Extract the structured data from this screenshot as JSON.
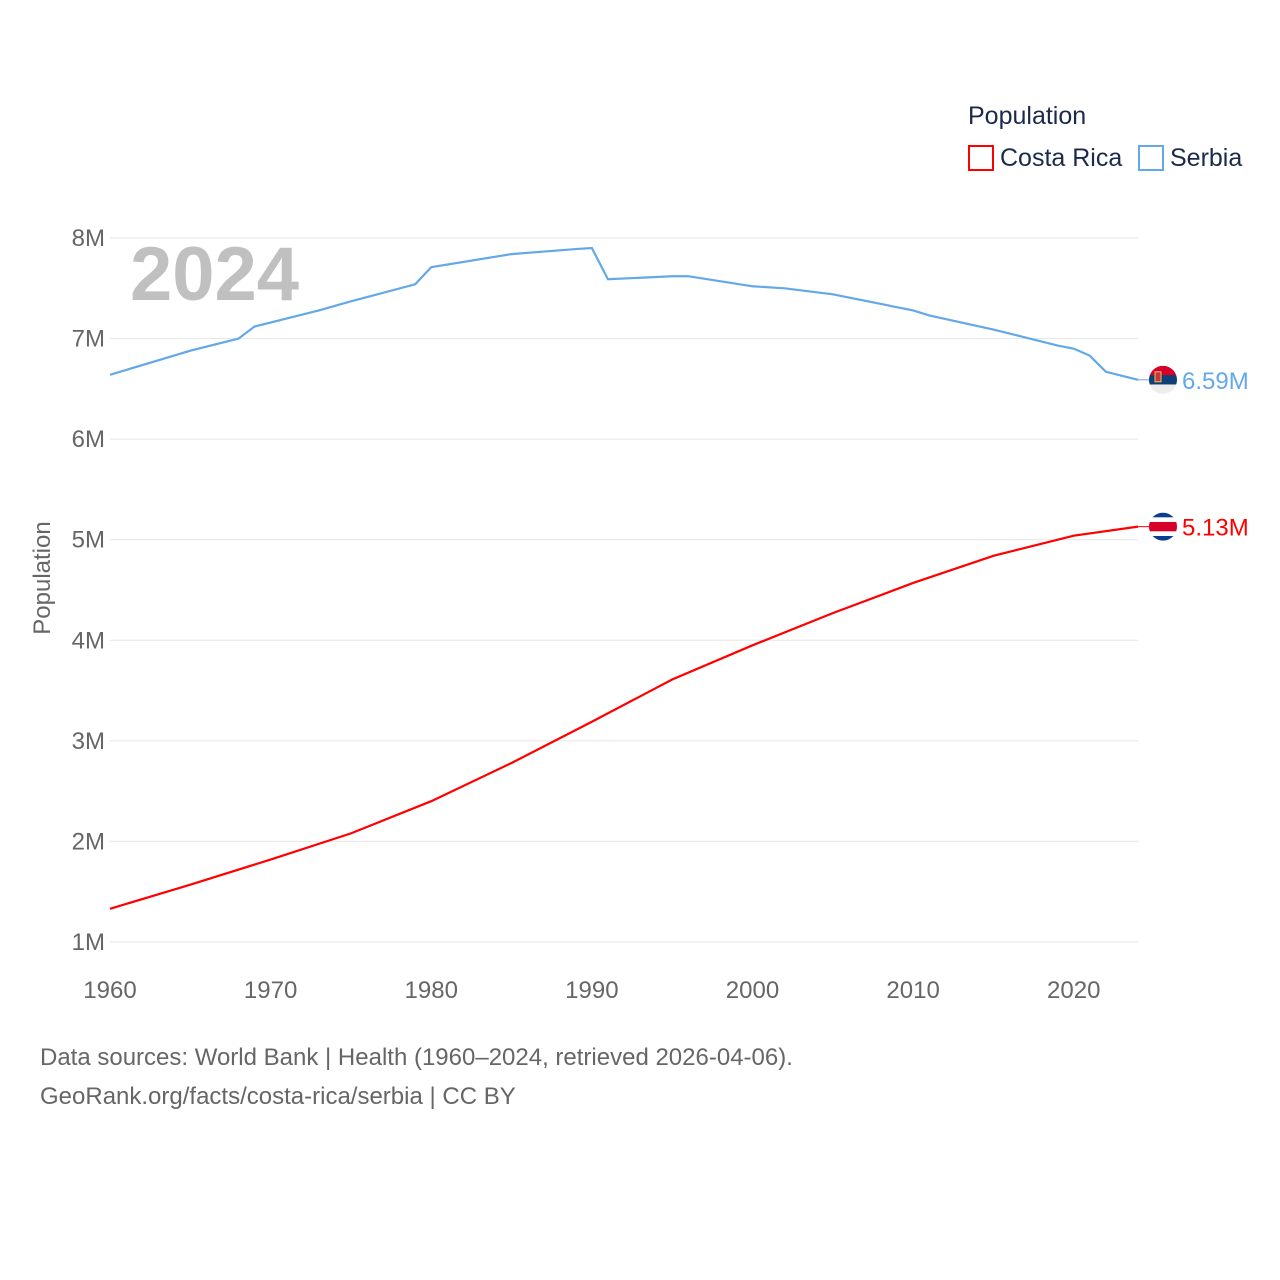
{
  "chart_data": {
    "type": "line",
    "year_label": "2024",
    "ylabel": "Population",
    "legend_title": "Population",
    "legend_position": "top-right",
    "xlim": [
      1960,
      2024
    ],
    "ylim": [
      1000000,
      8000000
    ],
    "x_ticks": [
      "1960",
      "1970",
      "1980",
      "1990",
      "2000",
      "2010",
      "2020"
    ],
    "y_ticks": [
      {
        "value": 1000000,
        "label": "1M"
      },
      {
        "value": 2000000,
        "label": "2M"
      },
      {
        "value": 3000000,
        "label": "3M"
      },
      {
        "value": 4000000,
        "label": "4M"
      },
      {
        "value": 5000000,
        "label": "5M"
      },
      {
        "value": 6000000,
        "label": "6M"
      },
      {
        "value": 7000000,
        "label": "7M"
      },
      {
        "value": 8000000,
        "label": "8M"
      }
    ],
    "grid": true,
    "series": [
      {
        "name": "Costa Rica",
        "color": "#ff0000",
        "end_label": "5.13M",
        "x": [
          1960,
          1965,
          1970,
          1975,
          1980,
          1985,
          1990,
          1995,
          2000,
          2005,
          2010,
          2015,
          2020,
          2024
        ],
        "values": [
          1330000,
          1570000,
          1820000,
          2080000,
          2400000,
          2780000,
          3190000,
          3610000,
          3950000,
          4270000,
          4570000,
          4840000,
          5040000,
          5130000
        ]
      },
      {
        "name": "Serbia",
        "color": "#63a8e8",
        "end_label": "6.59M",
        "x": [
          1960,
          1965,
          1968,
          1969,
          1973,
          1975,
          1979,
          1980,
          1985,
          1989,
          1990,
          1991,
          1995,
          1996,
          2000,
          2002,
          2005,
          2010,
          2011,
          2015,
          2019,
          2020,
          2021,
          2022,
          2023,
          2024
        ],
        "values": [
          6640000,
          6880000,
          7000000,
          7120000,
          7280000,
          7370000,
          7540000,
          7710000,
          7840000,
          7890000,
          7900000,
          7590000,
          7620000,
          7620000,
          7520000,
          7500000,
          7440000,
          7280000,
          7230000,
          7090000,
          6930000,
          6900000,
          6830000,
          6670000,
          6630000,
          6590000
        ]
      }
    ]
  },
  "footer": {
    "line1": "Data sources: World Bank | Health (1960–2024, retrieved 2026-04-06).",
    "line2": "GeoRank.org/facts/costa-rica/serbia | CC BY"
  }
}
